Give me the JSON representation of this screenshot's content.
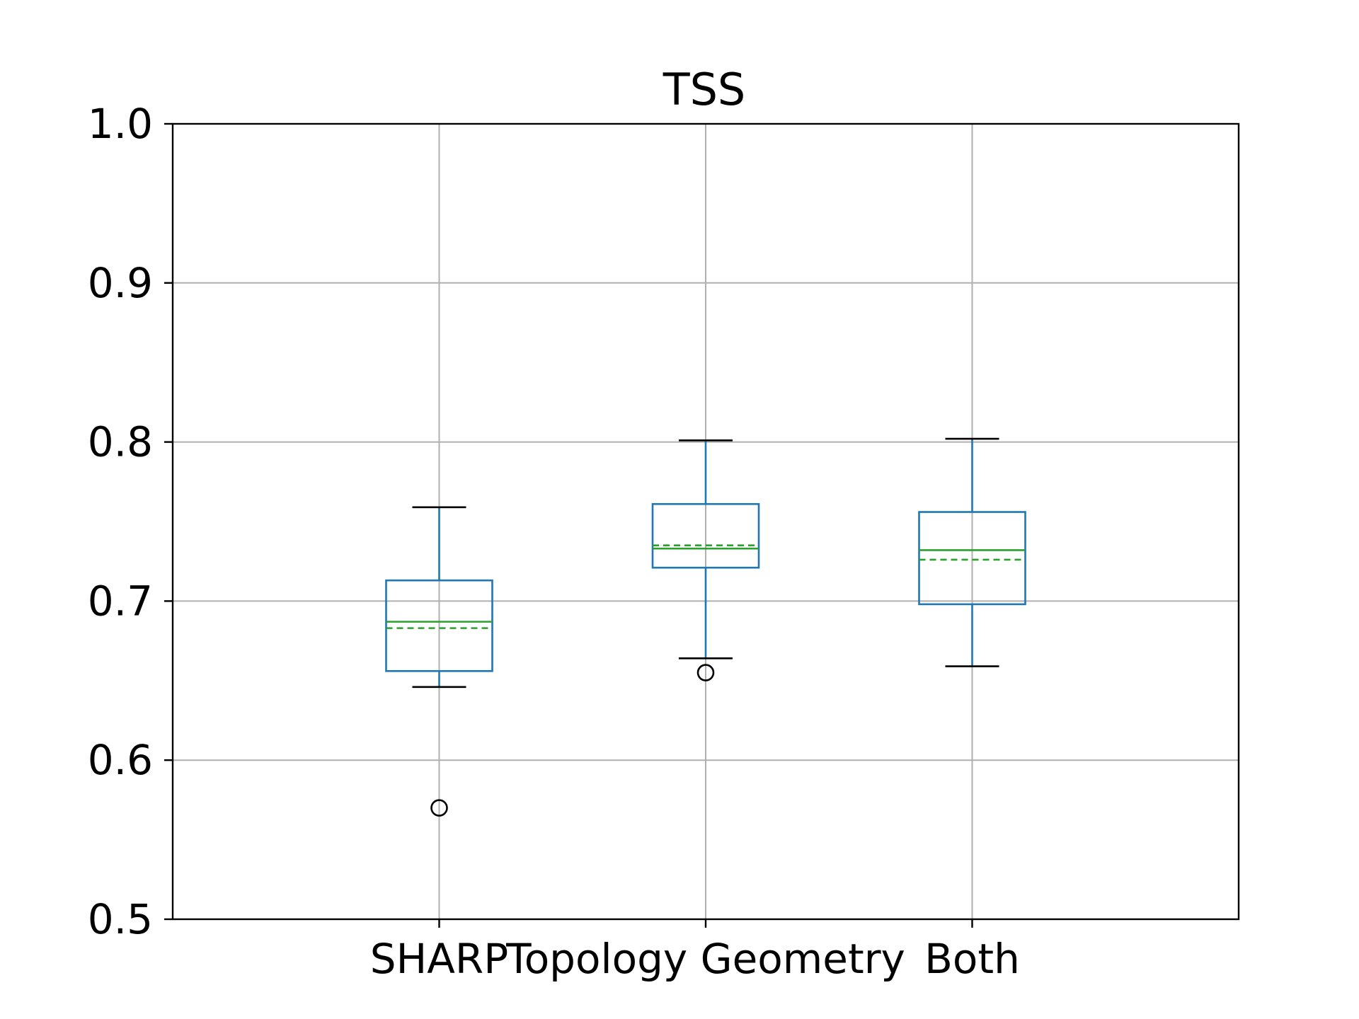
{
  "chart_data": {
    "type": "box",
    "title": "TSS",
    "xlabel": "",
    "ylabel": "",
    "categories": [
      "SHARP",
      "Topology Geometry",
      "Both"
    ],
    "ylim": [
      0.5,
      1.0
    ],
    "yticks": [
      "0.5",
      "0.6",
      "0.7",
      "0.8",
      "0.9",
      "1.0"
    ],
    "grid": true,
    "boxes": [
      {
        "category": "SHARP",
        "whisker_low": 0.646,
        "q1": 0.656,
        "median": 0.687,
        "mean": 0.683,
        "q3": 0.713,
        "whisker_high": 0.759,
        "outliers": [
          0.57
        ]
      },
      {
        "category": "Topology Geometry",
        "whisker_low": 0.664,
        "q1": 0.721,
        "median": 0.733,
        "mean": 0.735,
        "q3": 0.761,
        "whisker_high": 0.801,
        "outliers": [
          0.655
        ]
      },
      {
        "category": "Both",
        "whisker_low": 0.659,
        "q1": 0.698,
        "median": 0.732,
        "mean": 0.726,
        "q3": 0.756,
        "whisker_high": 0.802,
        "outliers": []
      }
    ],
    "colors": {
      "box": "#1f77b4",
      "median": "#2ca02c",
      "mean": "#2ca02c",
      "whisker_cap": "#000000",
      "grid": "#b0b0b0",
      "axes": "#000000"
    }
  }
}
